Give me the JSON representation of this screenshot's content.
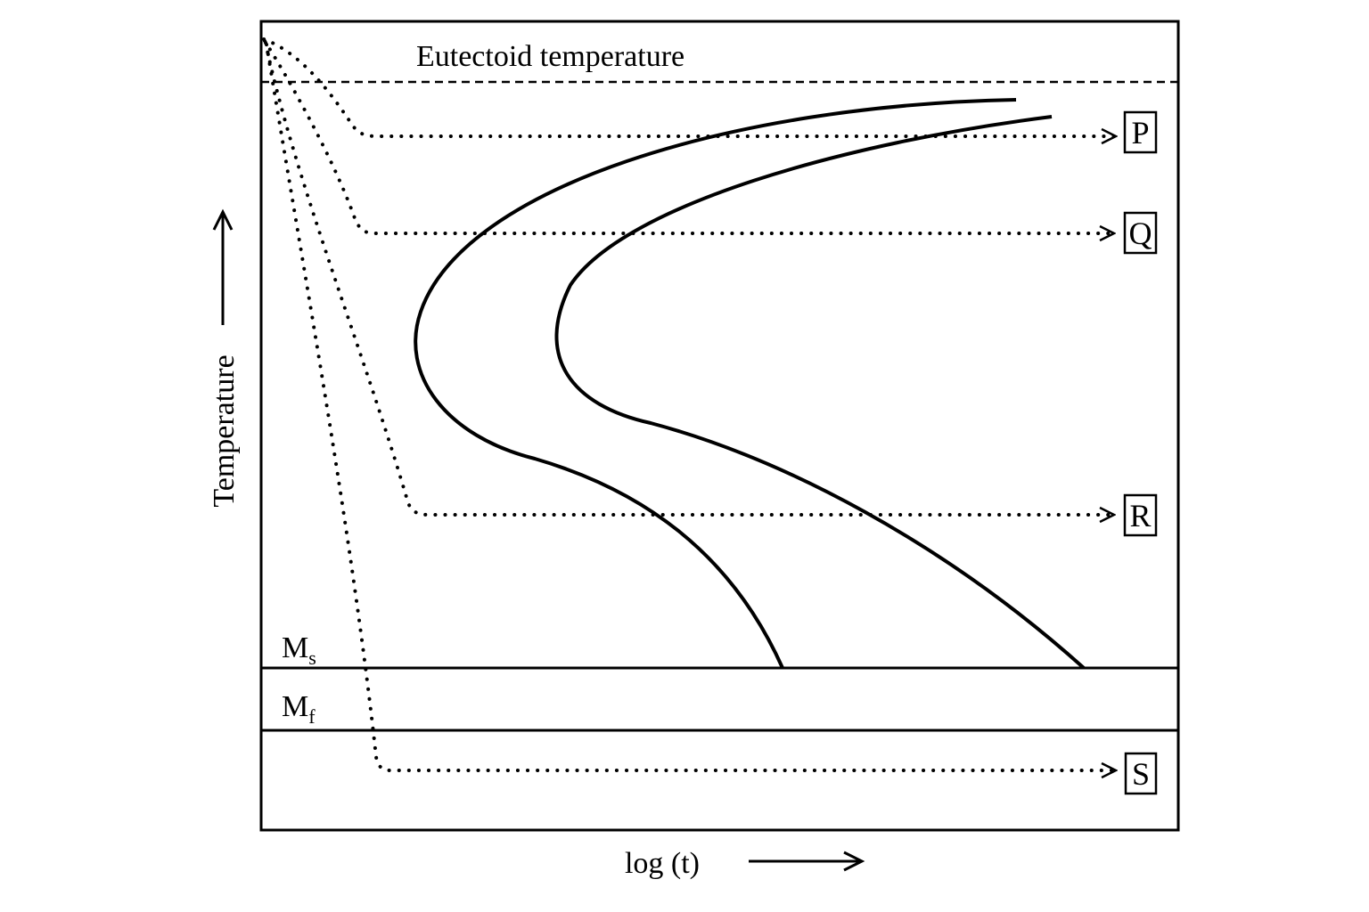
{
  "diagram": {
    "eutectoid_label": "Eutectoid temperature",
    "ms_label": {
      "main": "M",
      "sub": "s"
    },
    "mf_label": {
      "main": "M",
      "sub": "f"
    },
    "y_axis_label": "Temperature",
    "x_axis_label": "log (t)",
    "paths": [
      {
        "id": "P",
        "label": "P"
      },
      {
        "id": "Q",
        "label": "Q"
      },
      {
        "id": "R",
        "label": "R"
      },
      {
        "id": "S",
        "label": "S"
      }
    ],
    "colors": {
      "line": "#000000",
      "background": "#ffffff"
    }
  }
}
